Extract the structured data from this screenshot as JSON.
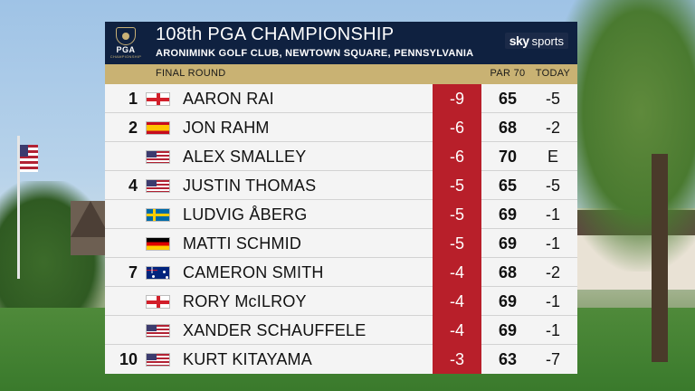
{
  "header": {
    "logo_text": "PGA",
    "logo_sub": "CHAMPIONSHIP",
    "title": "108th PGA CHAMPIONSHIP",
    "subtitle": "ARONIMINK GOLF CLUB, NEWTOWN SQUARE, PENNSYLVANIA",
    "broadcaster": {
      "sky": "sky",
      "sports": "sports"
    }
  },
  "columns": {
    "round": "FINAL ROUND",
    "par": "PAR 70",
    "today": "TODAY"
  },
  "colors": {
    "header_bg": "#0f2140",
    "gold": "#c9b273",
    "score_red": "#b81f2a",
    "row_bg": "#f4f4f4"
  },
  "players": [
    {
      "pos": "1",
      "flag": "england",
      "name": "AARON RAI",
      "score": "-9",
      "round": "65",
      "today": "-5"
    },
    {
      "pos": "2",
      "flag": "spain",
      "name": "JON RAHM",
      "score": "-6",
      "round": "68",
      "today": "-2"
    },
    {
      "pos": "",
      "flag": "usa",
      "name": "ALEX SMALLEY",
      "score": "-6",
      "round": "70",
      "today": "E"
    },
    {
      "pos": "4",
      "flag": "usa",
      "name": "JUSTIN THOMAS",
      "score": "-5",
      "round": "65",
      "today": "-5"
    },
    {
      "pos": "",
      "flag": "sweden",
      "name": "LUDVIG ÅBERG",
      "score": "-5",
      "round": "69",
      "today": "-1"
    },
    {
      "pos": "",
      "flag": "germany",
      "name": "MATTI SCHMID",
      "score": "-5",
      "round": "69",
      "today": "-1"
    },
    {
      "pos": "7",
      "flag": "australia",
      "name": "CAMERON SMITH",
      "score": "-4",
      "round": "68",
      "today": "-2"
    },
    {
      "pos": "",
      "flag": "northern-ireland",
      "name": "RORY McILROY",
      "score": "-4",
      "round": "69",
      "today": "-1"
    },
    {
      "pos": "",
      "flag": "usa",
      "name": "XANDER SCHAUFFELE",
      "score": "-4",
      "round": "69",
      "today": "-1"
    },
    {
      "pos": "10",
      "flag": "usa",
      "name": "KURT KITAYAMA",
      "score": "-3",
      "round": "63",
      "today": "-7"
    }
  ]
}
